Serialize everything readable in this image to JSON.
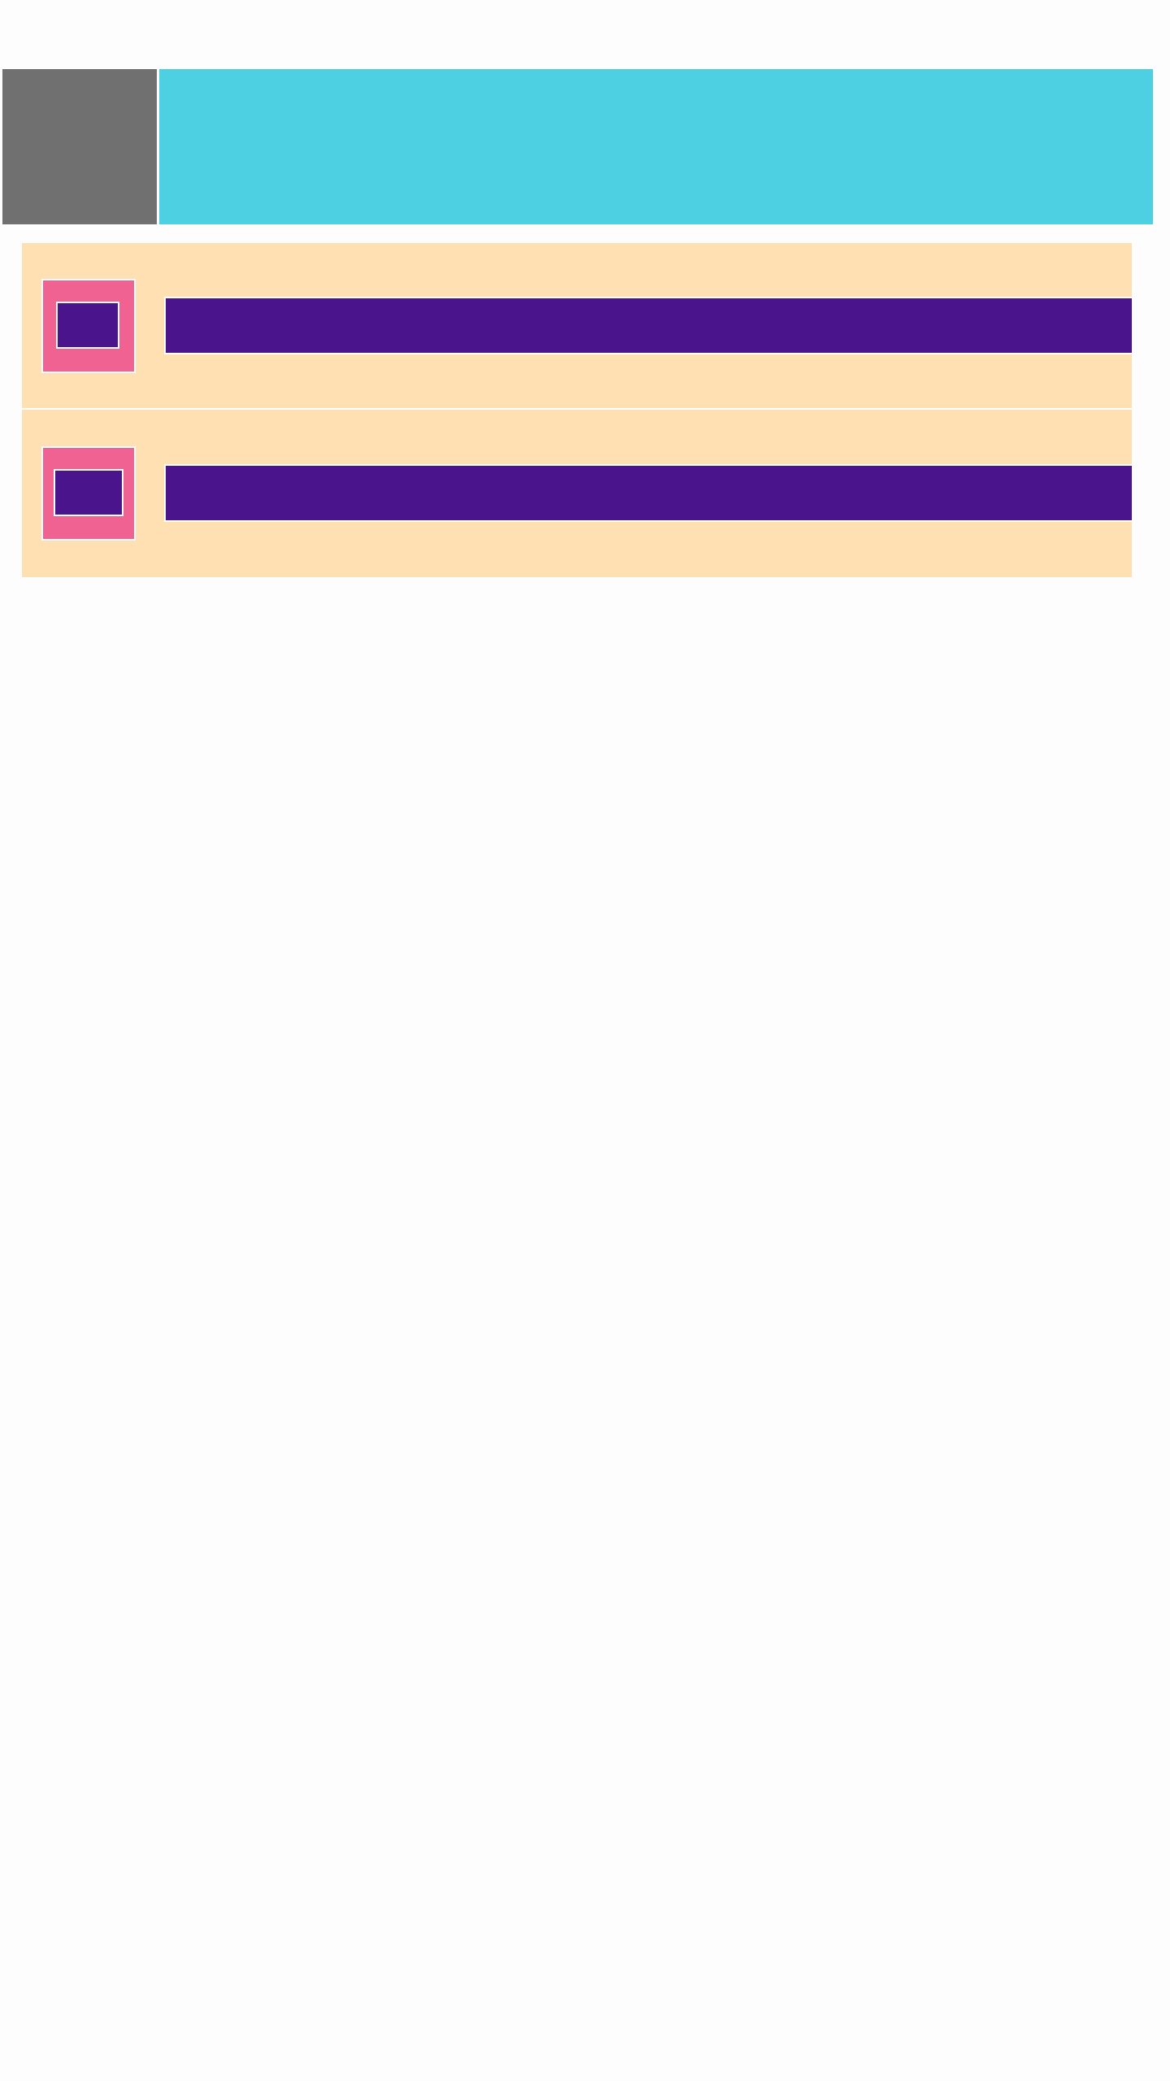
{
  "colors": {
    "page_background": "#fdfdfd",
    "header_left_block": "#707070",
    "header_bar": "#4dd0e1",
    "list_background": "#ffe0b2",
    "thumbnail_frame": "#f06292",
    "accent": "#4a148c",
    "divider": "#ffffff"
  },
  "header": {
    "left_block": "",
    "title": ""
  },
  "list": {
    "items": [
      {
        "text": ""
      },
      {
        "text": ""
      }
    ]
  }
}
